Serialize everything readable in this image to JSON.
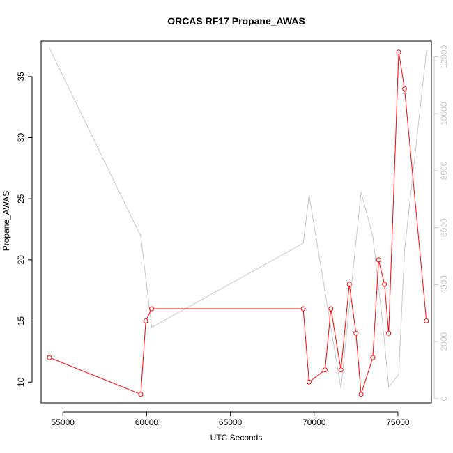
{
  "chart_data": {
    "type": "line",
    "title": "ORCAS RF17 Propane_AWAS",
    "xlabel": "UTC Seconds",
    "ylabel": "Propane_AWAS",
    "xlim": [
      53700,
      77000
    ],
    "ylim": [
      8.3,
      37.9
    ],
    "ylim_right": [
      -150,
      12550
    ],
    "x_ticks": [
      55000,
      60000,
      65000,
      70000,
      75000
    ],
    "y_ticks": [
      10,
      15,
      20,
      25,
      30,
      35
    ],
    "y_ticks_right": [
      0,
      2000,
      4000,
      6000,
      8000,
      10000,
      12000
    ],
    "grid": false,
    "colors": {
      "primary": "#ff0000",
      "secondary": "#c8c8c8",
      "frame": "#000000"
    },
    "series": [
      {
        "axis": "left",
        "style": "line+points",
        "x": [
          54200,
          59650,
          59950,
          60300,
          69350,
          69700,
          70650,
          71000,
          71600,
          72100,
          72500,
          72800,
          73500,
          73850,
          74200,
          74450,
          75050,
          75400,
          76700
        ],
        "y": [
          12,
          9,
          15,
          16,
          16,
          10,
          11,
          16,
          11,
          18,
          14,
          9,
          12,
          20,
          18,
          14,
          37,
          34,
          15
        ]
      },
      {
        "axis": "right",
        "style": "line",
        "x": [
          54200,
          59650,
          60300,
          69350,
          69700,
          71600,
          72800,
          73500,
          74100,
          74450,
          75050,
          75400,
          76700
        ],
        "y": [
          12300,
          5700,
          2500,
          5450,
          7150,
          350,
          7250,
          5700,
          2600,
          400,
          850,
          5200,
          12200
        ]
      }
    ]
  }
}
